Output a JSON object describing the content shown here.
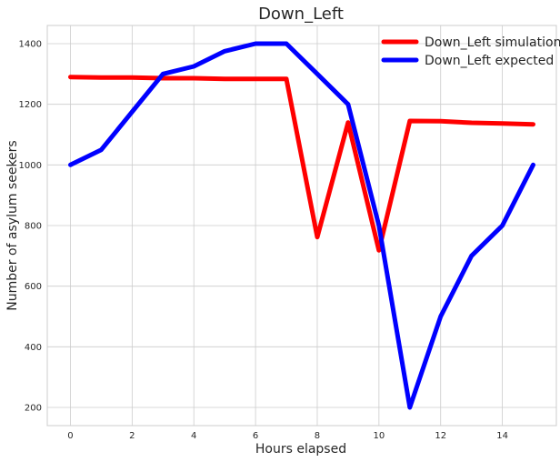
{
  "chart_data": {
    "type": "line",
    "title": "Down_Left",
    "xlabel": "Hours elapsed",
    "ylabel": "Number of asylum seekers",
    "xlim": [
      -0.75,
      15.75
    ],
    "ylim": [
      140,
      1460
    ],
    "xticks": [
      0,
      2,
      4,
      6,
      8,
      10,
      12,
      14
    ],
    "yticks": [
      200,
      400,
      600,
      800,
      1000,
      1200,
      1400
    ],
    "grid": true,
    "legend_position": "top-right",
    "x": [
      0,
      1,
      2,
      3,
      4,
      5,
      6,
      7,
      8,
      9,
      10,
      11,
      12,
      13,
      14,
      15
    ],
    "series": [
      {
        "name": "Down_Left simulation",
        "color": "#ff0000",
        "values": [
          1290,
          1288,
          1288,
          1286,
          1286,
          1284,
          1284,
          1284,
          762,
          1140,
          718,
          1145,
          1144,
          1139,
          1137,
          1134
        ]
      },
      {
        "name": "Down_Left expected",
        "color": "#0000ff",
        "values": [
          1000,
          1050,
          1175,
          1300,
          1325,
          1375,
          1400,
          1400,
          1300,
          1200,
          800,
          200,
          500,
          700,
          800,
          1000
        ]
      }
    ]
  }
}
